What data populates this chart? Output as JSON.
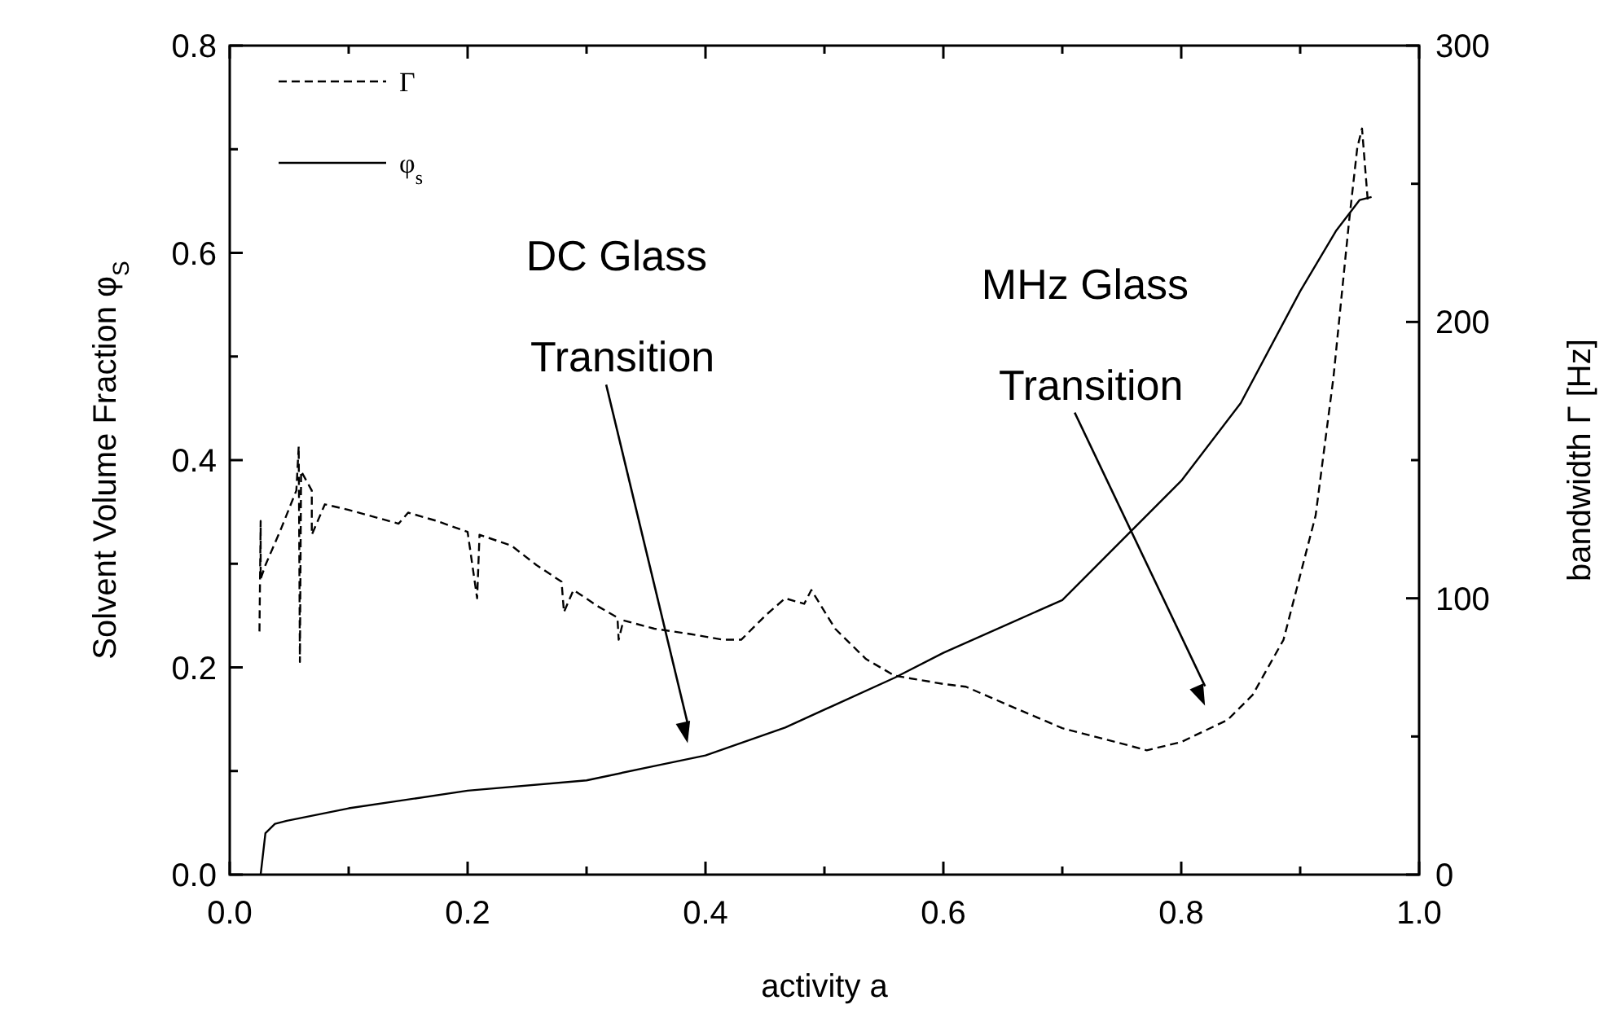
{
  "chart_data": {
    "type": "line",
    "xlabel": "activity a",
    "ylabel": "Solvent Volume Fraction φ$_{S}$",
    "y2label": "bandwidth Γ [Hz]",
    "xlim": [
      0,
      1
    ],
    "xticks": [
      {
        "value": 0,
        "label": "0.0"
      },
      {
        "value": 0.1,
        "label": null
      },
      {
        "value": 0.2,
        "label": "0.2"
      },
      {
        "value": 0.3,
        "label": null
      },
      {
        "value": 0.4,
        "label": "0.4"
      },
      {
        "value": 0.5,
        "label": null
      },
      {
        "value": 0.6,
        "label": "0.6"
      },
      {
        "value": 0.7,
        "label": null
      },
      {
        "value": 0.8,
        "label": "0.8"
      },
      {
        "value": 0.9,
        "label": null
      },
      {
        "value": 1,
        "label": "1.0"
      }
    ],
    "ylim": [
      0,
      0.8
    ],
    "yticks": [
      {
        "value": 0,
        "label": "0.0"
      },
      {
        "value": 0.1,
        "label": null
      },
      {
        "value": 0.2,
        "label": "0.2"
      },
      {
        "value": 0.3,
        "label": null
      },
      {
        "value": 0.4,
        "label": "0.4"
      },
      {
        "value": 0.5,
        "label": null
      },
      {
        "value": 0.6,
        "label": "0.6"
      },
      {
        "value": 0.7,
        "label": null
      },
      {
        "value": 0.8,
        "label": "0.8"
      }
    ],
    "y2lim": [
      0,
      300
    ],
    "y2ticks": [
      0,
      {
        "value": 50,
        "label": null
      },
      100,
      {
        "value": 150,
        "label": null
      },
      200,
      {
        "value": 250,
        "label": null
      },
      300
    ],
    "legend": "top left",
    "grid": false,
    "series": [
      {
        "name": "Γ",
        "color": "#000000",
        "line_style": "dashed",
        "axis": "y2",
        "x": [
          0.025,
          0.026,
          0.026,
          0.03,
          0.043,
          0.056,
          0.058,
          0.059,
          0.06,
          0.069,
          0.069,
          0.08,
          0.1,
          0.142,
          0.15,
          0.174,
          0.2,
          0.208,
          0.21,
          0.237,
          0.258,
          0.279,
          0.281,
          0.289,
          0.31,
          0.326,
          0.327,
          0.331,
          0.357,
          0.388,
          0.415,
          0.43,
          0.451,
          0.467,
          0.483,
          0.489,
          0.509,
          0.535,
          0.559,
          0.6,
          0.619,
          0.651,
          0.7,
          0.745,
          0.771,
          0.8,
          0.839,
          0.86,
          0.886,
          0.913,
          0.928,
          0.941,
          0.948,
          0.952,
          0.957
        ],
        "values": [
          88,
          128,
          107,
          112,
          125,
          139,
          155,
          77,
          146,
          139,
          123,
          134,
          132,
          127,
          131,
          128,
          124,
          100,
          123,
          119,
          112,
          106,
          95,
          103,
          97,
          93,
          85,
          92,
          89,
          87,
          85,
          85,
          94,
          100,
          98,
          103,
          89,
          78,
          72,
          69,
          68,
          62,
          53,
          48,
          45,
          48,
          56,
          65,
          85,
          130,
          180,
          236,
          263,
          270,
          243
        ]
      },
      {
        "name": "φ$_{s}$",
        "color": "#000000",
        "line_style": "solid",
        "x": [
          0.026,
          0.03,
          0.038,
          0.048,
          0.1,
          0.2,
          0.3,
          0.362,
          0.4,
          0.467,
          0.559,
          0.6,
          0.7,
          0.8,
          0.85,
          0.9,
          0.93,
          0.95,
          0.96
        ],
        "values": [
          0,
          0.04,
          0.049,
          0.052,
          0.064,
          0.081,
          0.091,
          0.106,
          0.115,
          0.142,
          0.19,
          0.214,
          0.265,
          0.38,
          0.455,
          0.563,
          0.621,
          0.651,
          0.654
        ]
      }
    ],
    "annotations": [
      "DC Glass Transition",
      "MHz Glass Transition"
    ]
  }
}
